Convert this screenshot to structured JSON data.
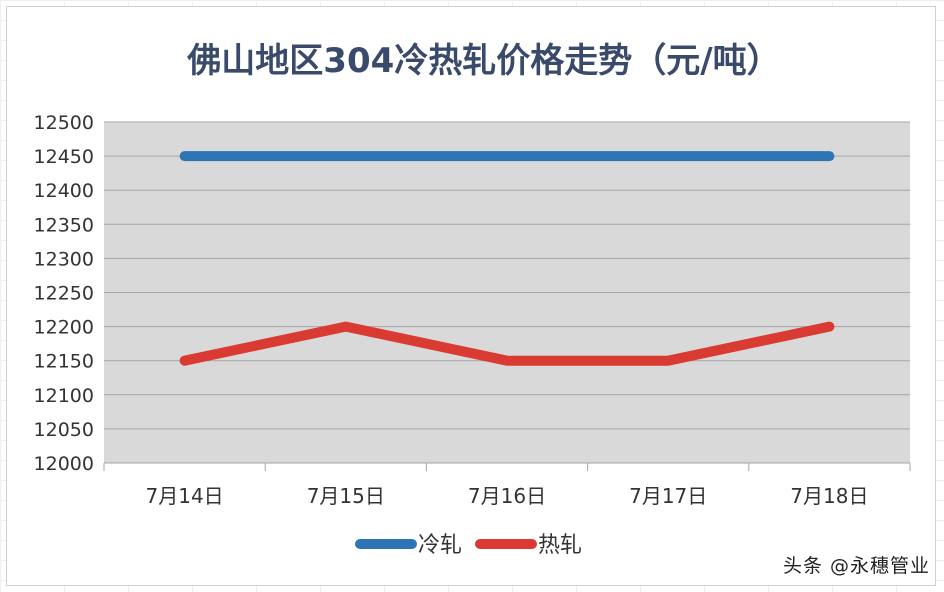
{
  "watermark": "头条 @永穗管业",
  "chart_data": {
    "type": "line",
    "title": "佛山地区304冷热轧价格走势（元/吨）",
    "categories": [
      "7月14日",
      "7月15日",
      "7月16日",
      "7月17日",
      "7月18日"
    ],
    "series": [
      {
        "name": "冷轧",
        "color": "#2e75b6",
        "values": [
          12450,
          12450,
          12450,
          12450,
          12450
        ]
      },
      {
        "name": "热轧",
        "color": "#d93a32",
        "values": [
          12150,
          12200,
          12150,
          12150,
          12200
        ]
      }
    ],
    "ylim": [
      12000,
      12500
    ],
    "yticks": [
      "12000",
      "12050",
      "12100",
      "12150",
      "12200",
      "12250",
      "12300",
      "12350",
      "12400",
      "12450",
      "12500"
    ],
    "grid": true,
    "plot_background": "#d9d9d9",
    "legend_position": "bottom"
  }
}
